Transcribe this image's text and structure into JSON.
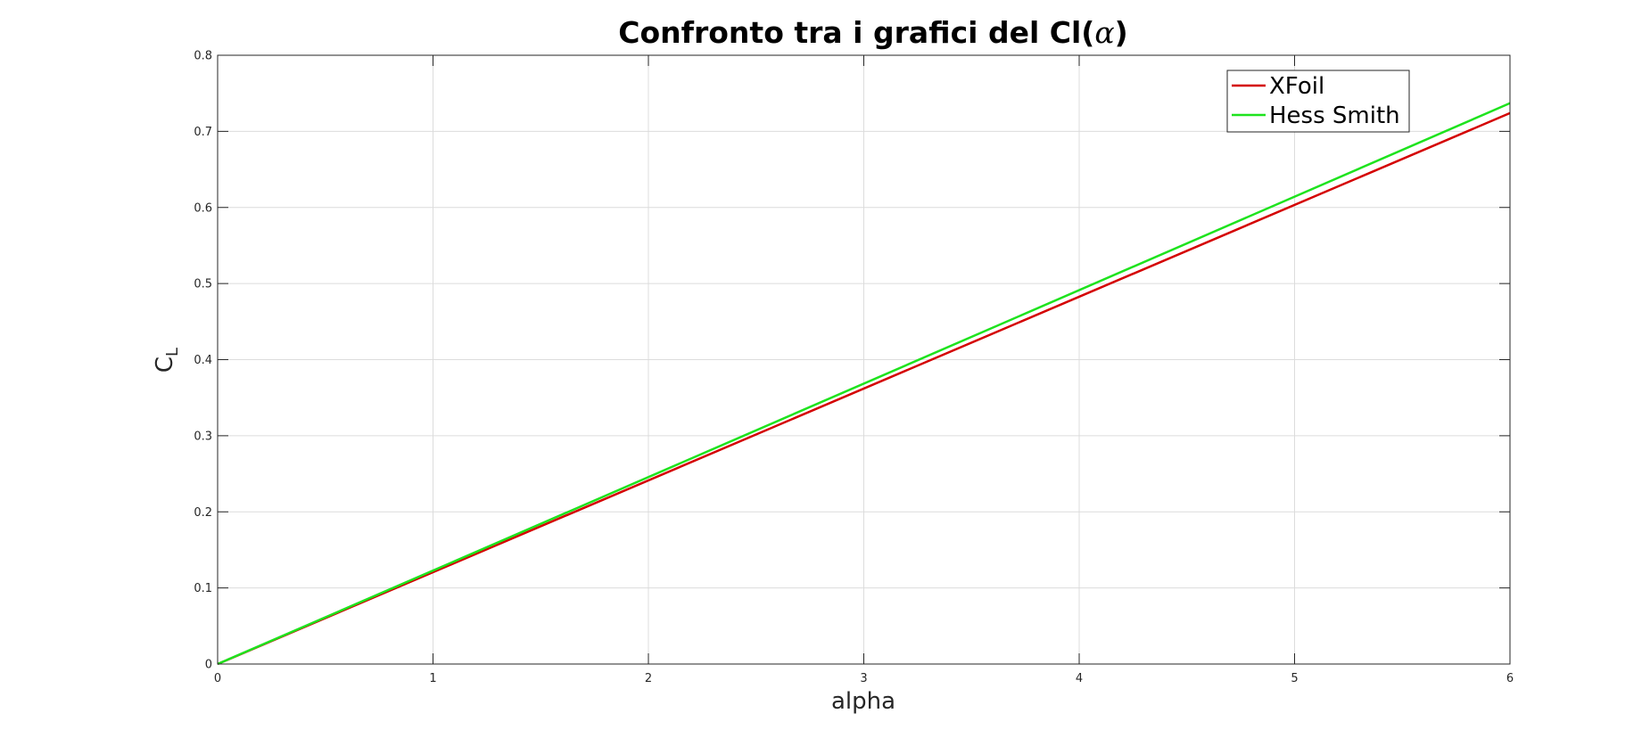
{
  "chart_data": {
    "type": "line",
    "title_main": "Confronto tra i grafici del Cl(",
    "title_symbol": "α",
    "title_end": ")",
    "xlabel": "alpha",
    "ylabel_main": "C",
    "ylabel_sub": "L",
    "xlim": [
      0,
      6
    ],
    "ylim": [
      0,
      0.8
    ],
    "xticks": [
      0,
      1,
      2,
      3,
      4,
      5,
      6
    ],
    "yticks": [
      0,
      0.1,
      0.2,
      0.3,
      0.4,
      0.5,
      0.6,
      0.7,
      0.8
    ],
    "grid": true,
    "legend_position": "top-right",
    "series": [
      {
        "name": "XFoil",
        "color": "#d40000",
        "x": [
          0,
          6
        ],
        "y": [
          0,
          0.724
        ]
      },
      {
        "name": "Hess Smith",
        "color": "#1ee31e",
        "x": [
          0,
          6
        ],
        "y": [
          0,
          0.737
        ]
      }
    ]
  }
}
